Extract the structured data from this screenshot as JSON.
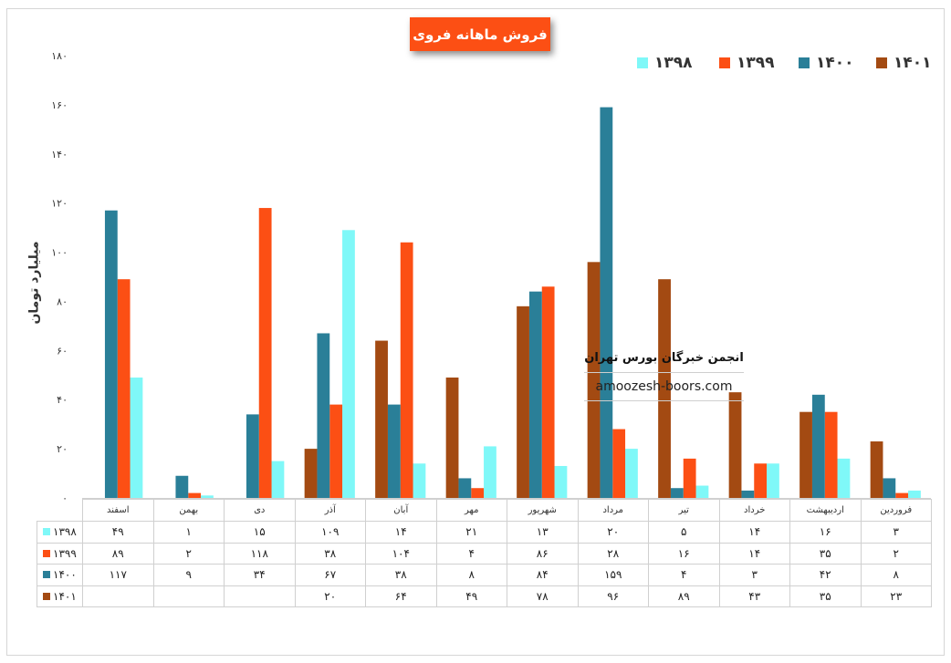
{
  "chart_data": {
    "type": "bar",
    "title": "فروش ماهانه فروی",
    "ylabel": "میلیارد تومان",
    "ylim": [
      0,
      180
    ],
    "yticks": [
      "۰",
      "۲۰",
      "۴۰",
      "۶۰",
      "۸۰",
      "۱۰۰",
      "۱۲۰",
      "۱۴۰",
      "۱۶۰",
      "۱۸۰"
    ],
    "ytick_values": [
      0,
      20,
      40,
      60,
      80,
      100,
      120,
      140,
      160,
      180
    ],
    "grid": false,
    "legend_position": "top-right",
    "categories": [
      "فروردین",
      "اردیبهشت",
      "خرداد",
      "تیر",
      "مرداد",
      "شهریور",
      "مهر",
      "آبان",
      "آذر",
      "دی",
      "بهمن",
      "اسفند"
    ],
    "series": [
      {
        "name": "۱۳۹۸",
        "color": "#7ff8f8",
        "values": [
          3,
          16,
          14,
          5,
          20,
          13,
          21,
          14,
          109,
          15,
          1,
          49
        ],
        "labels": [
          "۳",
          "۱۶",
          "۱۴",
          "۵",
          "۲۰",
          "۱۳",
          "۲۱",
          "۱۴",
          "۱۰۹",
          "۱۵",
          "۱",
          "۴۹"
        ]
      },
      {
        "name": "۱۳۹۹",
        "color": "#fc4f14",
        "values": [
          2,
          35,
          14,
          16,
          28,
          86,
          4,
          104,
          38,
          118,
          2,
          89
        ],
        "labels": [
          "۲",
          "۳۵",
          "۱۴",
          "۱۶",
          "۲۸",
          "۸۶",
          "۴",
          "۱۰۴",
          "۳۸",
          "۱۱۸",
          "۲",
          "۸۹"
        ]
      },
      {
        "name": "۱۴۰۰",
        "color": "#2a7f98",
        "values": [
          8,
          42,
          3,
          4,
          159,
          84,
          8,
          38,
          67,
          34,
          9,
          117
        ],
        "labels": [
          "۸",
          "۴۲",
          "۳",
          "۴",
          "۱۵۹",
          "۸۴",
          "۸",
          "۳۸",
          "۶۷",
          "۳۴",
          "۹",
          "۱۱۷"
        ]
      },
      {
        "name": "۱۴۰۱",
        "color": "#a34a12",
        "values": [
          23,
          35,
          43,
          89,
          96,
          78,
          49,
          64,
          20,
          null,
          null,
          null
        ],
        "labels": [
          "۲۳",
          "۳۵",
          "۴۳",
          "۸۹",
          "۹۶",
          "۷۸",
          "۴۹",
          "۶۴",
          "۲۰",
          "",
          "",
          ""
        ]
      }
    ]
  },
  "watermark": {
    "title": "انجمن خبرگان بورس تهران",
    "site": "amoozesh-boors.com"
  }
}
